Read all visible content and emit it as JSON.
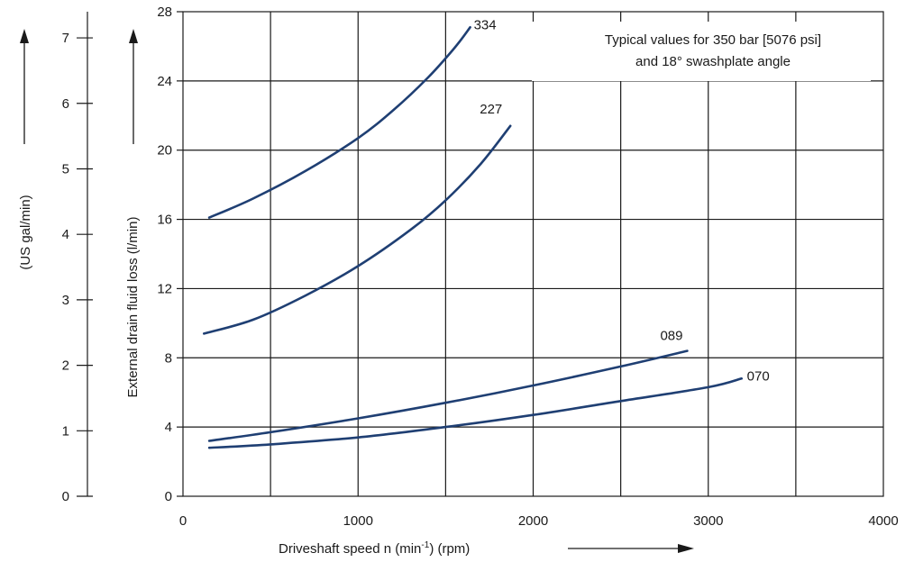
{
  "chart_data": {
    "type": "line",
    "note_line1": "Typical values for 350 bar [5076 psi]",
    "note_line2": "and 18° swashplate angle",
    "xlabel": "Driveshaft speed n (min-1) (rpm)",
    "xlabel_main": "Driveshaft speed n (min",
    "xlabel_sup": "-1",
    "xlabel_tail": ") (rpm)",
    "ylabel": "External drain fluid loss (l/min)",
    "ylabel_secondary": "(US gal/min)",
    "xlim": [
      0,
      4000
    ],
    "ylim": [
      0,
      28
    ],
    "ylim_secondary": [
      0,
      7.4
    ],
    "xticks": [
      "0",
      "1000",
      "2000",
      "3000",
      "4000"
    ],
    "yticks": [
      "0",
      "4",
      "8",
      "12",
      "16",
      "20",
      "24",
      "28"
    ],
    "yticks_secondary": [
      "0",
      "1",
      "2",
      "3",
      "4",
      "5",
      "6",
      "7"
    ],
    "xtick_values": [
      0,
      1000,
      2000,
      3000,
      4000
    ],
    "ytick_values": [
      0,
      4,
      8,
      12,
      16,
      20,
      24,
      28
    ],
    "ytick_secondary_values": [
      0,
      1,
      2,
      3,
      4,
      5,
      6,
      7
    ],
    "x_minor_grid": [
      500,
      1500,
      2500,
      3500
    ],
    "series": [
      {
        "name": "334",
        "x": [
          150,
          400,
          700,
          1000,
          1200,
          1400,
          1550,
          1640
        ],
        "y": [
          16.1,
          17.2,
          18.8,
          20.7,
          22.3,
          24.2,
          25.9,
          27.1
        ]
      },
      {
        "name": "227",
        "x": [
          120,
          400,
          700,
          1000,
          1300,
          1500,
          1700,
          1870
        ],
        "y": [
          9.4,
          10.2,
          11.6,
          13.3,
          15.4,
          17.1,
          19.2,
          21.4
        ]
      },
      {
        "name": "089",
        "x": [
          150,
          500,
          1000,
          1500,
          2000,
          2500,
          2880
        ],
        "y": [
          3.2,
          3.7,
          4.5,
          5.4,
          6.4,
          7.5,
          8.4
        ]
      },
      {
        "name": "070",
        "x": [
          150,
          500,
          1000,
          1500,
          2000,
          2500,
          3000,
          3190
        ],
        "y": [
          2.8,
          3.0,
          3.4,
          4.0,
          4.7,
          5.5,
          6.3,
          6.8
        ]
      }
    ],
    "series_color": "#1f3f73",
    "grid": true
  }
}
